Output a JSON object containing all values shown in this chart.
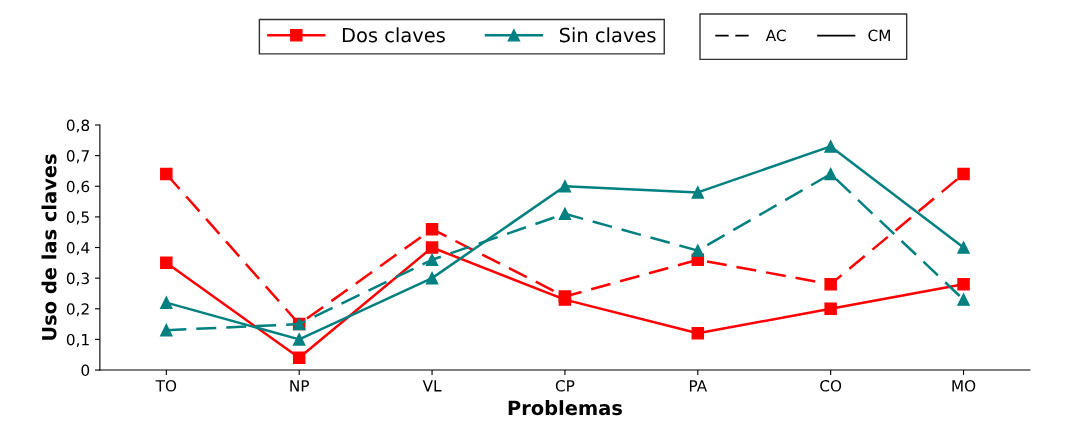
{
  "chart_data": {
    "type": "line",
    "xlabel": "Problemas",
    "ylabel": "Uso de las claves",
    "categories": [
      "TO",
      "NP",
      "VL",
      "CP",
      "PA",
      "CO",
      "MO"
    ],
    "ylim": [
      0,
      0.8
    ],
    "yticks": [
      0,
      {
        "value": 0.1,
        "label": "0,1"
      },
      {
        "value": 0.2,
        "label": "0,2"
      },
      {
        "value": 0.3,
        "label": "0,3"
      },
      {
        "value": 0.4,
        "label": "0,4"
      },
      {
        "value": 0.5,
        "label": "0,5"
      },
      {
        "value": 0.6,
        "label": "0,6"
      },
      {
        "value": 0.7,
        "label": "0,7"
      },
      {
        "value": 0.8,
        "label": "0,8"
      }
    ],
    "legend": "top",
    "grid": false,
    "annotations": [
      "AC",
      "CM"
    ],
    "series": [
      {
        "color": "#ff0000",
        "marker": "square",
        "line_style": "dashed",
        "values": [
          0.64,
          0.15,
          0.46,
          0.24,
          0.36,
          0.28,
          0.64
        ]
      },
      {
        "name": "Dos claves",
        "color": "#ff0000",
        "marker": "square",
        "line_style": "solid",
        "values": [
          0.35,
          0.04,
          0.4,
          0.23,
          0.12,
          0.2,
          0.28
        ]
      },
      {
        "color": "#008080",
        "marker": "triangle",
        "line_style": "dashed",
        "values": [
          0.13,
          0.15,
          0.36,
          0.51,
          0.39,
          0.64,
          0.23
        ]
      },
      {
        "name": "Sin claves",
        "color": "#008080",
        "marker": "triangle",
        "line_style": "solid",
        "values": [
          0.22,
          0.1,
          0.3,
          0.6,
          0.58,
          0.73,
          0.4
        ]
      }
    ]
  }
}
